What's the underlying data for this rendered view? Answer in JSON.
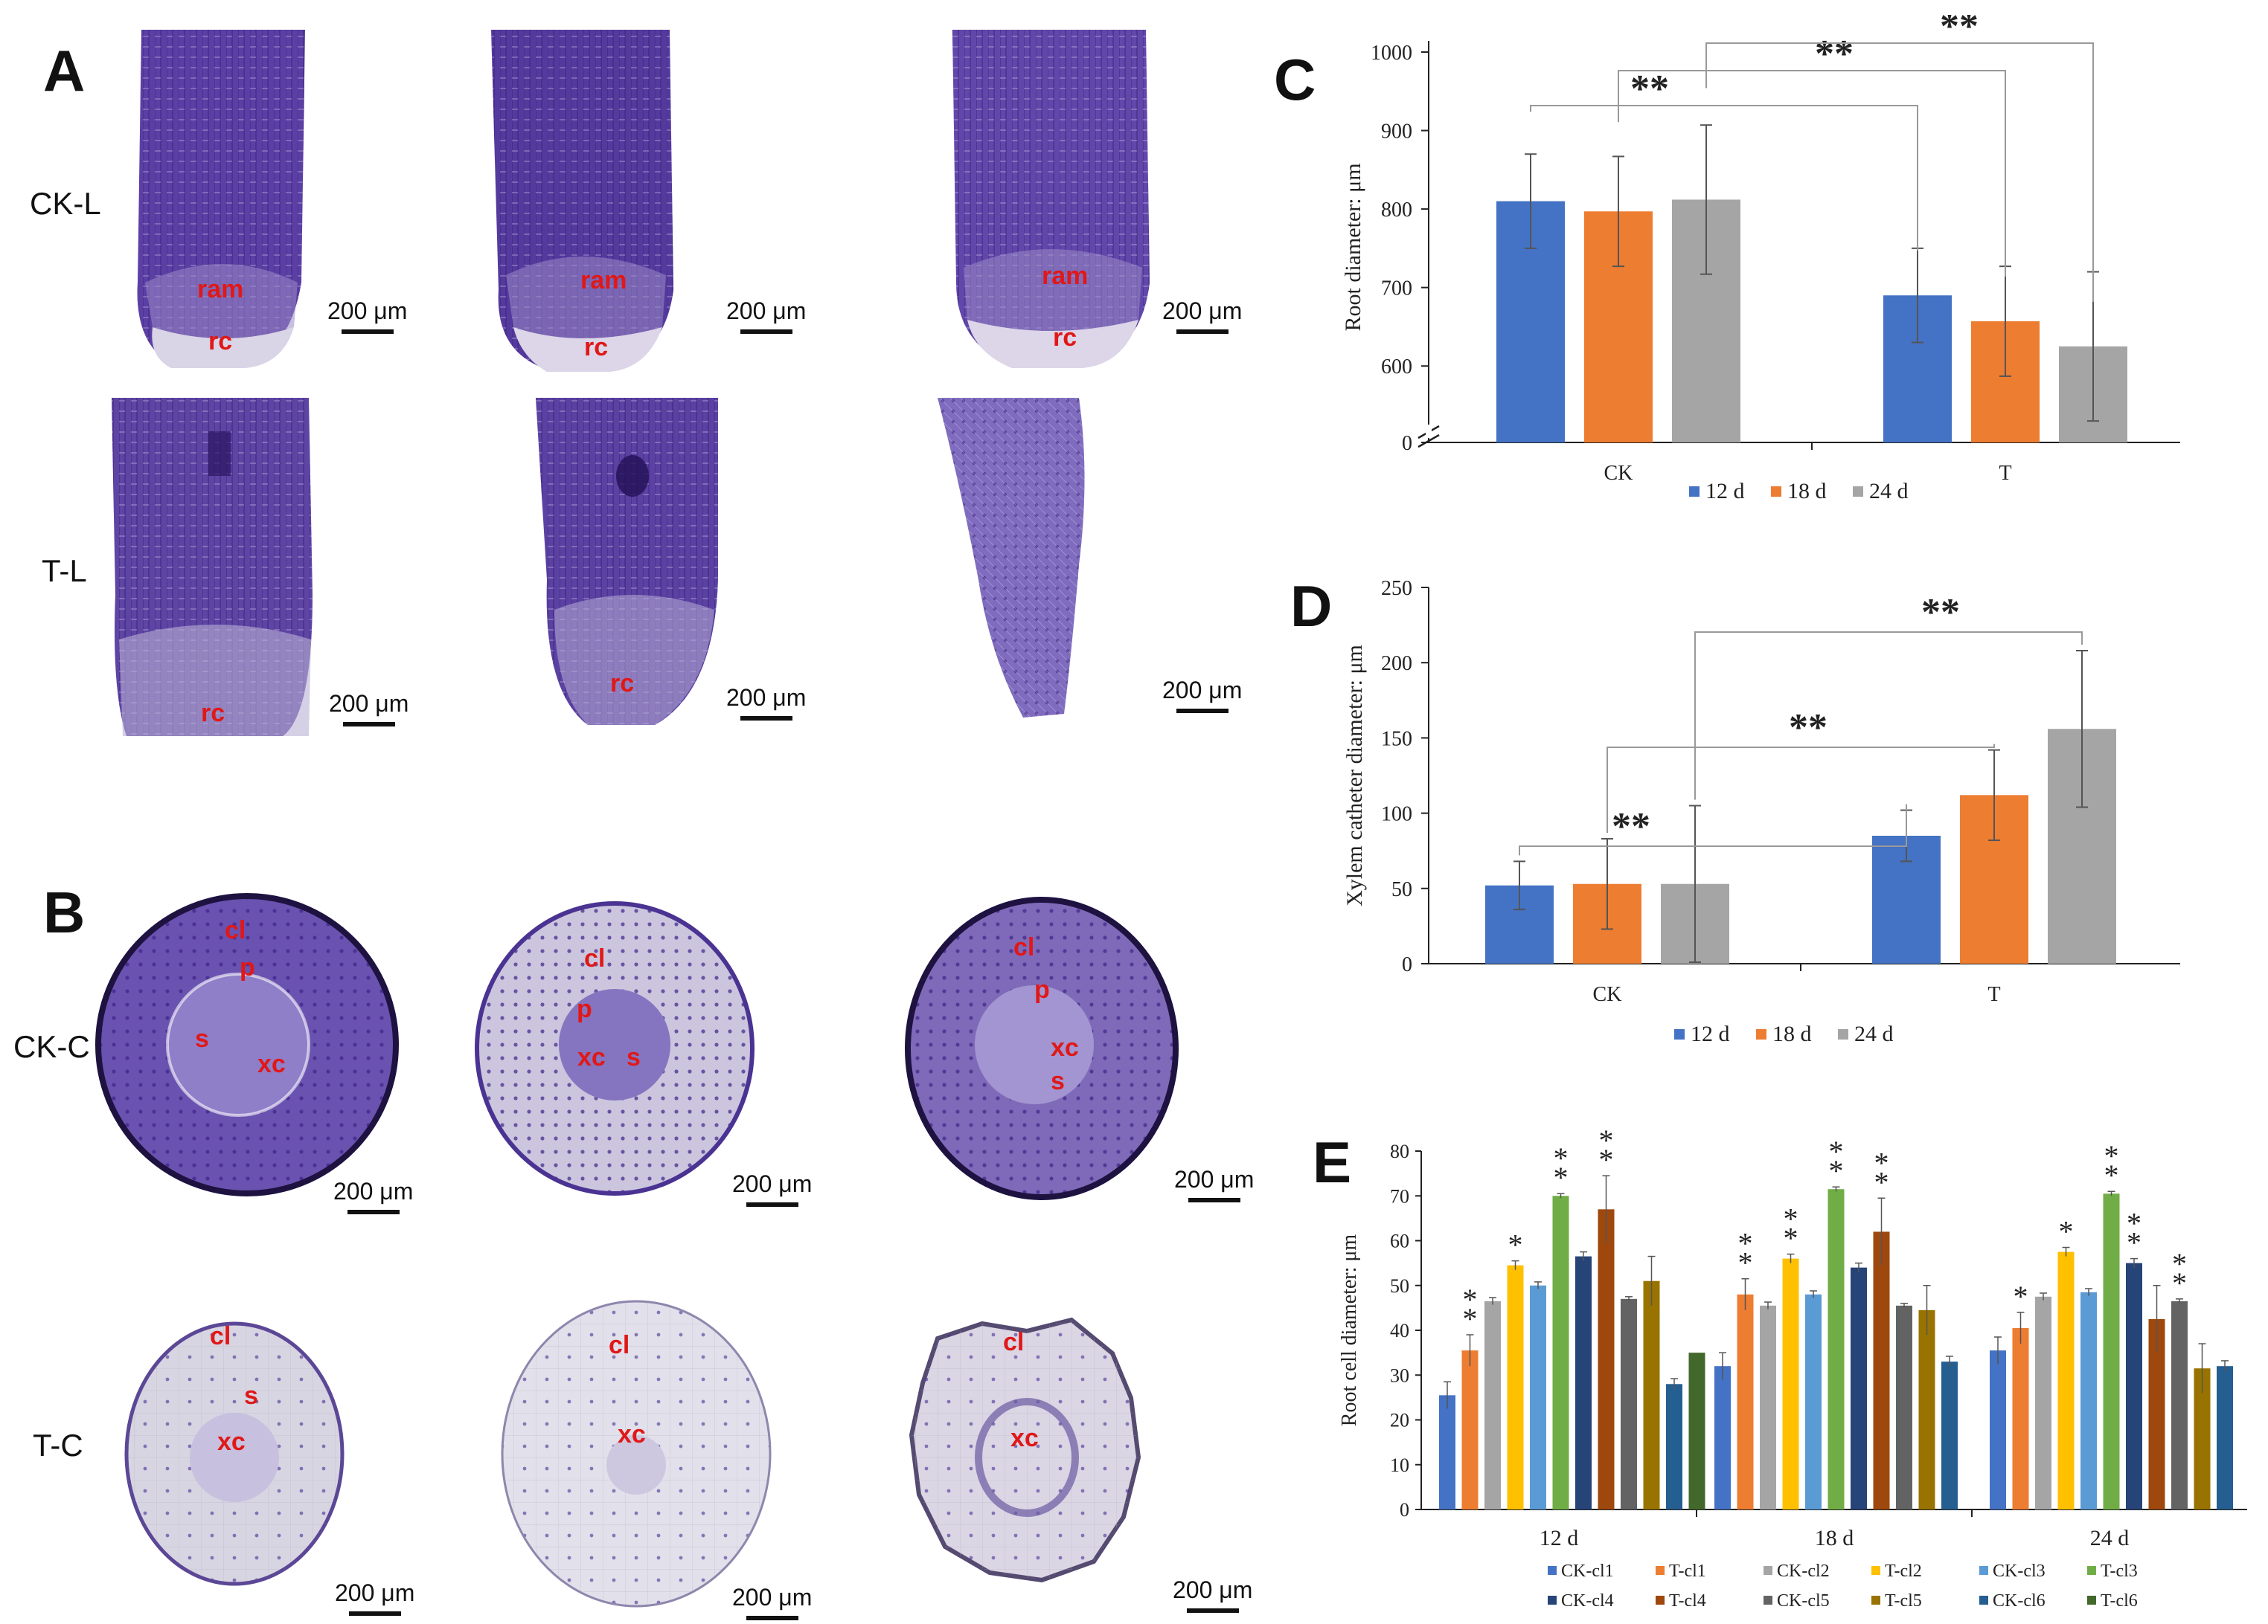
{
  "panels": {
    "A": {
      "label": "A",
      "rows": [
        "CK-L",
        "T-L"
      ],
      "scale_bar": "200 μm",
      "ck_tissue": [
        "ram",
        "rc"
      ],
      "t_tissue": [
        "rc"
      ]
    },
    "B": {
      "label": "B",
      "rows": [
        "CK-C",
        "T-C"
      ],
      "scale_bar": "200 μm",
      "tissue": [
        "cl",
        "p",
        "s",
        "xc"
      ]
    },
    "C": {
      "label": "C"
    },
    "D": {
      "label": "D"
    },
    "E": {
      "label": "E"
    }
  },
  "colors": {
    "d12": "#4472c4",
    "d18": "#ed7d31",
    "d24": "#a5a5a5",
    "stain": "#5a3d9a",
    "tissue_label": "#e01818"
  },
  "significance": "**",
  "significance_single": "*",
  "chart_data": [
    {
      "id": "C",
      "type": "bar",
      "title": "",
      "ylabel": "Root diameter: μm",
      "categories": [
        "CK",
        "T"
      ],
      "series": [
        {
          "name": "12 d",
          "values": [
            810,
            690
          ],
          "errors": [
            60,
            60
          ]
        },
        {
          "name": "18 d",
          "values": [
            797,
            657
          ],
          "errors": [
            70,
            70
          ]
        },
        {
          "name": "24 d",
          "values": [
            812,
            625
          ],
          "errors": [
            95,
            95
          ]
        }
      ],
      "yticks": [
        0,
        600,
        700,
        800,
        900,
        1000
      ],
      "axis_break": true,
      "ylim": [
        550,
        1000
      ]
    },
    {
      "id": "D",
      "type": "bar",
      "title": "",
      "ylabel": "Xylem catheter  diameter: μm",
      "categories": [
        "CK",
        "T"
      ],
      "series": [
        {
          "name": "12 d",
          "values": [
            52,
            85
          ],
          "errors": [
            16,
            17
          ]
        },
        {
          "name": "18 d",
          "values": [
            53,
            112
          ],
          "errors": [
            30,
            30
          ]
        },
        {
          "name": "24 d",
          "values": [
            53,
            156
          ],
          "errors": [
            52,
            52
          ]
        }
      ],
      "yticks": [
        0,
        50,
        100,
        150,
        200,
        250
      ],
      "ylim": [
        0,
        250
      ]
    },
    {
      "id": "E",
      "type": "bar",
      "title": "",
      "ylabel": "Root cell diameter: μm",
      "categories": [
        "12 d",
        "18 d",
        "24 d"
      ],
      "series": [
        {
          "name": "CK-cl1",
          "color": "#4472c4",
          "values": [
            25.5,
            32,
            35.5
          ],
          "errors": [
            3,
            3,
            3
          ],
          "sig": [
            "",
            "",
            ""
          ]
        },
        {
          "name": "T-cl1",
          "color": "#ed7d31",
          "values": [
            35.5,
            48,
            40.5
          ],
          "errors": [
            3.5,
            3.5,
            3.5
          ],
          "sig": [
            "**",
            "**",
            "*"
          ]
        },
        {
          "name": "CK-cl2",
          "color": "#a5a5a5",
          "values": [
            46.5,
            45.5,
            47.5
          ],
          "errors": [
            0.8,
            0.8,
            0.8
          ],
          "sig": [
            "",
            "",
            ""
          ]
        },
        {
          "name": "T-cl2",
          "color": "#ffc000",
          "values": [
            54.5,
            56,
            57.5
          ],
          "errors": [
            1,
            1,
            1
          ],
          "sig": [
            "*",
            "**",
            "*"
          ]
        },
        {
          "name": "CK-cl3",
          "color": "#5b9bd5",
          "values": [
            50,
            48,
            48.5
          ],
          "errors": [
            0.8,
            0.8,
            0.8
          ],
          "sig": [
            "",
            "",
            ""
          ]
        },
        {
          "name": "T-cl3",
          "color": "#70ad47",
          "values": [
            70,
            71.5,
            70.5
          ],
          "errors": [
            0.5,
            0.5,
            0.5
          ],
          "sig": [
            "**",
            "**",
            "**"
          ]
        },
        {
          "name": "CK-cl4",
          "color": "#264478",
          "values": [
            56.5,
            54,
            55
          ],
          "errors": [
            1,
            1,
            1
          ],
          "sig": [
            "",
            "",
            "**"
          ]
        },
        {
          "name": "T-cl4",
          "color": "#9e480e",
          "values": [
            67,
            62,
            42.5
          ],
          "errors": [
            7.5,
            7.5,
            7.5
          ],
          "sig": [
            "**",
            "**",
            ""
          ]
        },
        {
          "name": "CK-cl5",
          "color": "#636363",
          "values": [
            47,
            45.5,
            46.5
          ],
          "errors": [
            0.5,
            0.5,
            0.5
          ],
          "sig": [
            "",
            "",
            "**"
          ]
        },
        {
          "name": "T-cl5",
          "color": "#997300",
          "values": [
            51,
            44.5,
            31.5
          ],
          "errors": [
            5.5,
            5.5,
            5.5
          ],
          "sig": [
            "",
            "",
            ""
          ]
        },
        {
          "name": "CK-cl6",
          "color": "#255e91",
          "values": [
            28,
            33,
            32
          ],
          "errors": [
            1.2,
            1.2,
            1.2
          ],
          "sig": [
            "",
            "",
            ""
          ]
        },
        {
          "name": "T-cl6",
          "color": "#43682b",
          "values": [
            35,
            null,
            null
          ],
          "errors": [
            0,
            0,
            0
          ],
          "sig": [
            "",
            "",
            ""
          ]
        }
      ],
      "yticks": [
        0,
        10,
        20,
        30,
        40,
        50,
        60,
        70,
        80
      ],
      "ylim": [
        0,
        80
      ]
    }
  ]
}
